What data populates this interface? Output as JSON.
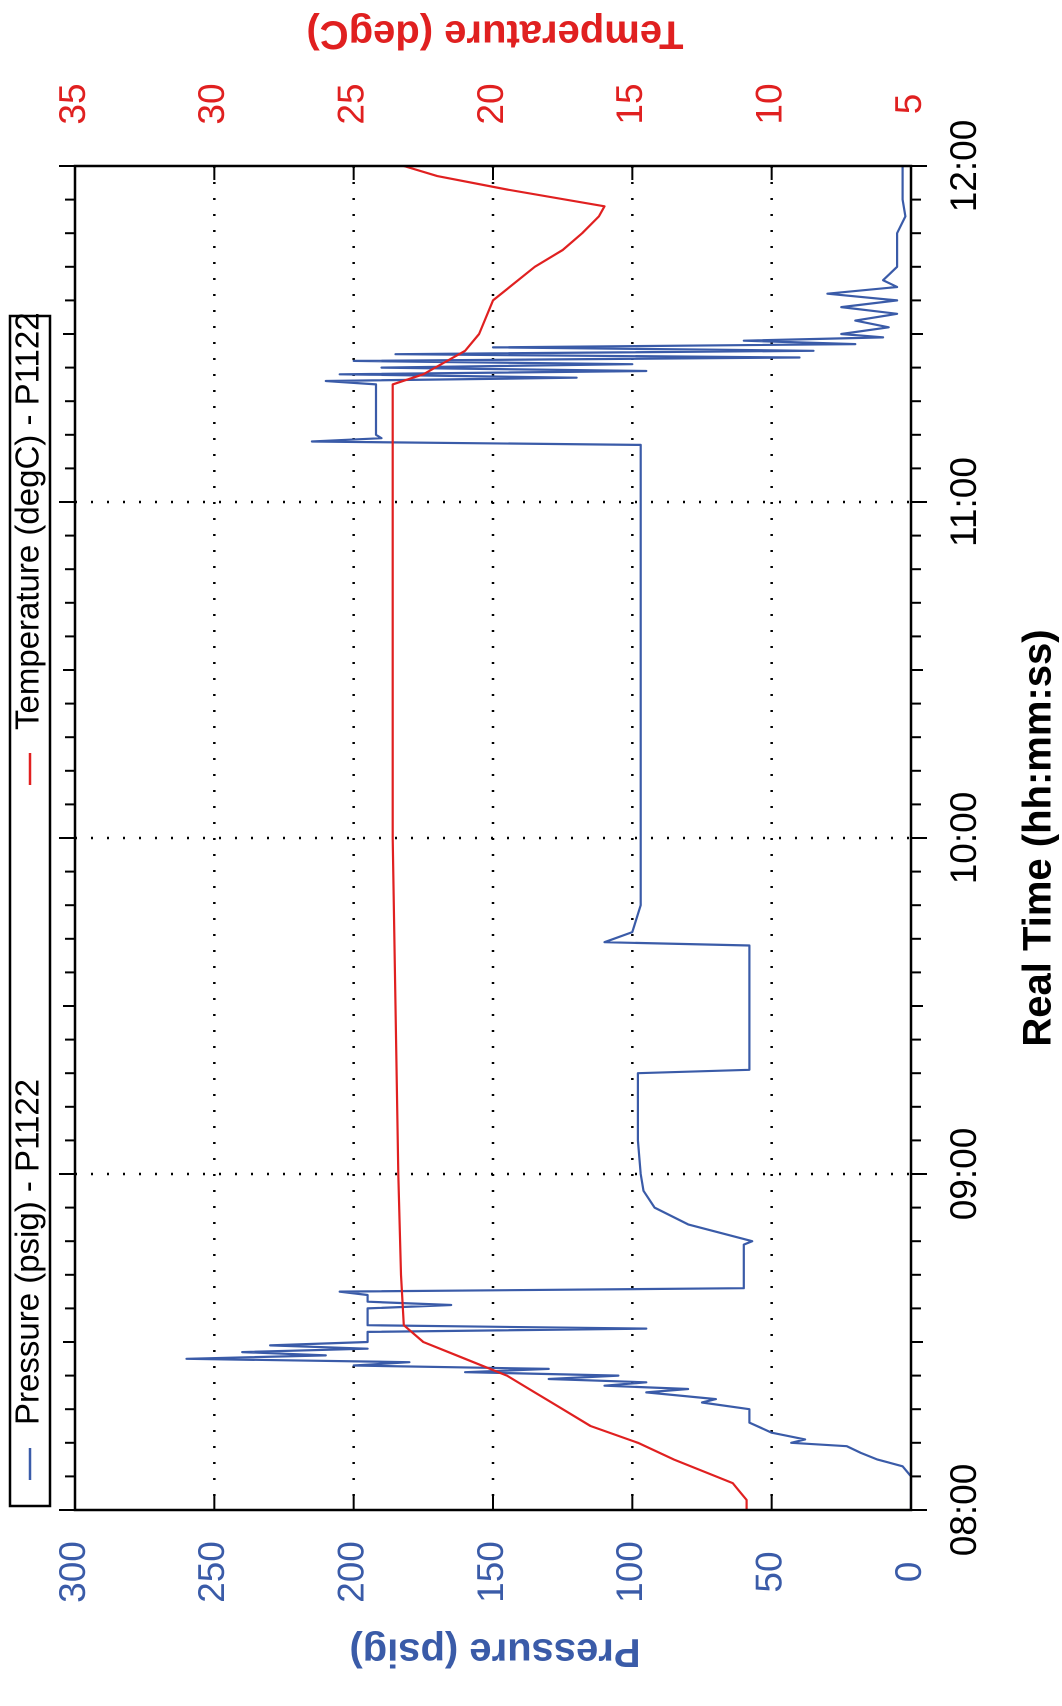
{
  "chart_data": {
    "type": "line",
    "orientation": "rotated-90-clockwise",
    "xlabel": "Real Time (hh:mm:ss)",
    "ylabel_left": "Pressure (psig)",
    "ylabel_right": "Temperature (degC)",
    "x_ticks": [
      "08:00",
      "09:00",
      "10:00",
      "11:00",
      "12:00"
    ],
    "x_range_hours": [
      8,
      12
    ],
    "y_left_ticks": [
      "0",
      "50",
      "100",
      "150",
      "200",
      "250",
      "300"
    ],
    "y_left_range": [
      0,
      300
    ],
    "y_right_ticks": [
      "5",
      "10",
      "15",
      "20",
      "25",
      "30",
      "35"
    ],
    "y_right_range": [
      5,
      35
    ],
    "grid": true,
    "legend_position": "top",
    "colors": {
      "pressure": "#3a5ba8",
      "temperature": "#e02020",
      "left_axis": "#3a5ba8",
      "right_axis": "#e02020"
    },
    "series": [
      {
        "name": "Pressure (psig) - P1122",
        "axis": "left",
        "color": "#3a5ba8",
        "points": [
          [
            8.0,
            0
          ],
          [
            8.1,
            0
          ],
          [
            8.13,
            3
          ],
          [
            8.15,
            12
          ],
          [
            8.17,
            18
          ],
          [
            8.19,
            23
          ],
          [
            8.2,
            43
          ],
          [
            8.21,
            38
          ],
          [
            8.23,
            50
          ],
          [
            8.26,
            58
          ],
          [
            8.3,
            58
          ],
          [
            8.32,
            75
          ],
          [
            8.33,
            70
          ],
          [
            8.35,
            95
          ],
          [
            8.36,
            80
          ],
          [
            8.37,
            110
          ],
          [
            8.38,
            95
          ],
          [
            8.39,
            130
          ],
          [
            8.4,
            105
          ],
          [
            8.41,
            160
          ],
          [
            8.42,
            130
          ],
          [
            8.43,
            200
          ],
          [
            8.44,
            180
          ],
          [
            8.45,
            260
          ],
          [
            8.46,
            210
          ],
          [
            8.47,
            240
          ],
          [
            8.48,
            195
          ],
          [
            8.49,
            230
          ],
          [
            8.5,
            195
          ],
          [
            8.53,
            195
          ],
          [
            8.54,
            95
          ],
          [
            8.55,
            195
          ],
          [
            8.6,
            195
          ],
          [
            8.61,
            165
          ],
          [
            8.62,
            195
          ],
          [
            8.64,
            195
          ],
          [
            8.65,
            205
          ],
          [
            8.66,
            60
          ],
          [
            8.79,
            60
          ],
          [
            8.8,
            57
          ],
          [
            8.85,
            80
          ],
          [
            8.9,
            92
          ],
          [
            8.95,
            96
          ],
          [
            9.0,
            97
          ],
          [
            9.1,
            98
          ],
          [
            9.3,
            98
          ],
          [
            9.31,
            58
          ],
          [
            9.5,
            58
          ],
          [
            9.68,
            58
          ],
          [
            9.69,
            110
          ],
          [
            9.72,
            100
          ],
          [
            9.8,
            97
          ],
          [
            10.0,
            97
          ],
          [
            10.5,
            97
          ],
          [
            11.0,
            97
          ],
          [
            11.17,
            97
          ],
          [
            11.18,
            215
          ],
          [
            11.19,
            190
          ],
          [
            11.2,
            192
          ],
          [
            11.35,
            192
          ],
          [
            11.36,
            210
          ],
          [
            11.37,
            120
          ],
          [
            11.38,
            205
          ],
          [
            11.39,
            95
          ],
          [
            11.4,
            190
          ],
          [
            11.41,
            100
          ],
          [
            11.42,
            200
          ],
          [
            11.43,
            40
          ],
          [
            11.44,
            185
          ],
          [
            11.45,
            35
          ],
          [
            11.46,
            150
          ],
          [
            11.47,
            20
          ],
          [
            11.48,
            60
          ],
          [
            11.49,
            10
          ],
          [
            11.5,
            25
          ],
          [
            11.52,
            8
          ],
          [
            11.54,
            20
          ],
          [
            11.56,
            5
          ],
          [
            11.58,
            25
          ],
          [
            11.6,
            5
          ],
          [
            11.62,
            30
          ],
          [
            11.64,
            5
          ],
          [
            11.66,
            10
          ],
          [
            11.7,
            5
          ],
          [
            11.8,
            5
          ],
          [
            11.85,
            2
          ],
          [
            11.9,
            3
          ],
          [
            11.95,
            3
          ],
          [
            12.0,
            3
          ]
        ]
      },
      {
        "name": "Temperature (degC) - P1122",
        "axis": "right",
        "color": "#e02020",
        "points": [
          [
            8.0,
            10.9
          ],
          [
            8.03,
            10.9
          ],
          [
            8.06,
            11.2
          ],
          [
            8.08,
            11.4
          ],
          [
            8.1,
            12
          ],
          [
            8.15,
            13.5
          ],
          [
            8.2,
            14.8
          ],
          [
            8.25,
            16.5
          ],
          [
            8.3,
            17.5
          ],
          [
            8.35,
            18.5
          ],
          [
            8.4,
            19.5
          ],
          [
            8.45,
            21
          ],
          [
            8.5,
            22.5
          ],
          [
            8.55,
            23.2
          ],
          [
            8.7,
            23.3
          ],
          [
            9.0,
            23.4
          ],
          [
            9.5,
            23.5
          ],
          [
            10.0,
            23.6
          ],
          [
            10.5,
            23.6
          ],
          [
            11.0,
            23.6
          ],
          [
            11.2,
            23.6
          ],
          [
            11.35,
            23.6
          ],
          [
            11.38,
            22.5
          ],
          [
            11.45,
            21
          ],
          [
            11.5,
            20.5
          ],
          [
            11.6,
            20
          ],
          [
            11.7,
            18.5
          ],
          [
            11.75,
            17.5
          ],
          [
            11.8,
            16.8
          ],
          [
            11.85,
            16.2
          ],
          [
            11.88,
            16.0
          ],
          [
            11.93,
            19.5
          ],
          [
            11.97,
            22
          ],
          [
            12.0,
            23.2
          ]
        ]
      }
    ]
  }
}
